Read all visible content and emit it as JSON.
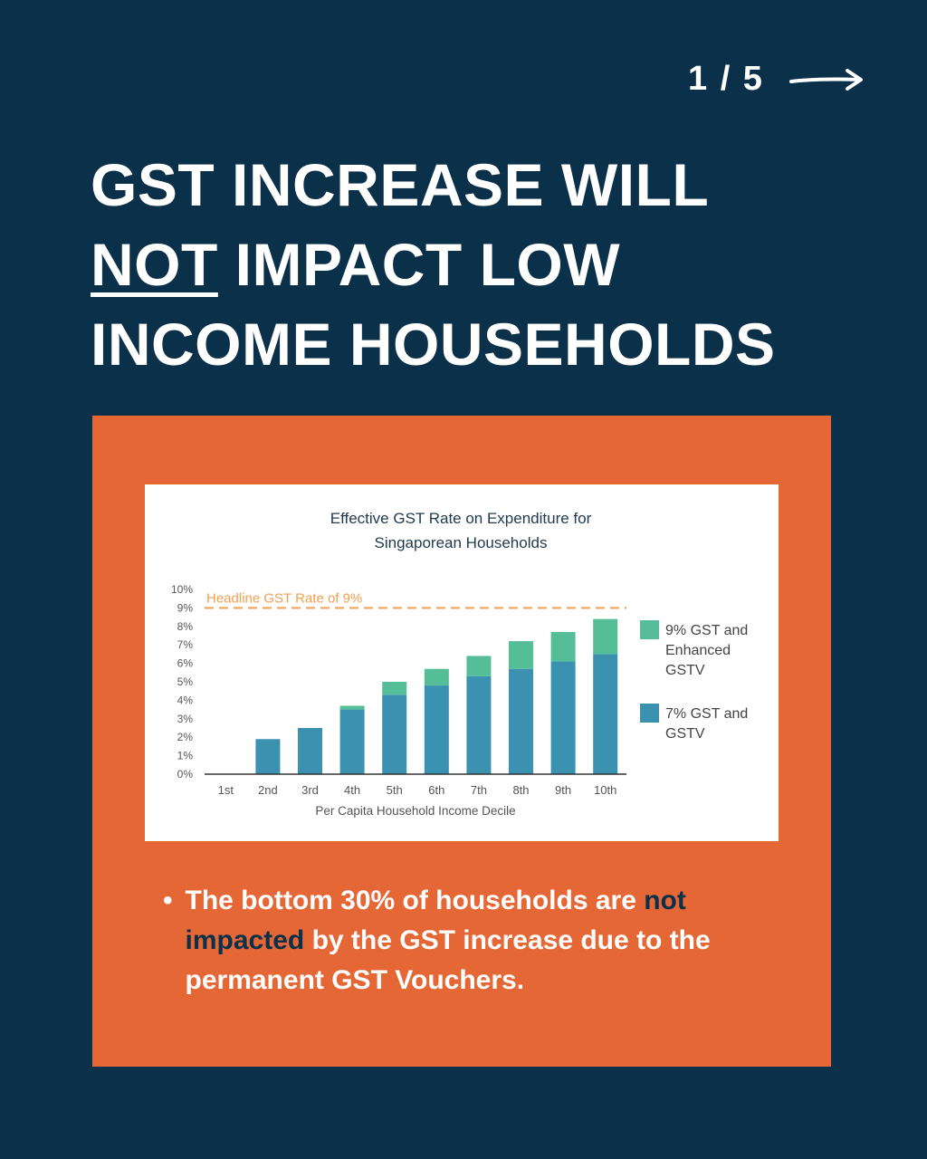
{
  "pager": {
    "text": "1 / 5",
    "icon": "arrow-right-icon"
  },
  "headline": {
    "line1": "GST INCREASE WILL",
    "line2_underlined": "NOT",
    "line2_rest": " IMPACT LOW",
    "line3": "INCOME HOUSEHOLDS"
  },
  "bullet": {
    "part1": "The bottom 30% of households are ",
    "highlight": "not impacted",
    "part2": " by the GST increase due to the permanent GST Vouchers."
  },
  "colors": {
    "background": "#0b3049",
    "panel": "#e66736",
    "series_7pct": "#3a91b0",
    "series_9pct": "#55bd98",
    "reference_line": "#f0a050"
  },
  "chart_data": {
    "type": "bar",
    "stacked": true,
    "title_line1": "Effective GST Rate on Expenditure for",
    "title_line2": "Singaporean Households",
    "xlabel": "Per Capita Household Income Decile",
    "ylabel": "",
    "ylim": [
      0,
      10
    ],
    "yticks": [
      "0%",
      "1%",
      "2%",
      "3%",
      "4%",
      "5%",
      "6%",
      "7%",
      "8%",
      "9%",
      "10%"
    ],
    "categories": [
      "1st",
      "2nd",
      "3rd",
      "4th",
      "5th",
      "6th",
      "7th",
      "8th",
      "9th",
      "10th"
    ],
    "series": [
      {
        "name": "7% GST and GSTV",
        "legend_lines": [
          "7% GST and",
          "GSTV"
        ],
        "color": "#3a91b0",
        "values": [
          0,
          1.9,
          2.5,
          3.5,
          4.3,
          4.8,
          5.3,
          5.7,
          6.1,
          6.5
        ]
      },
      {
        "name": "9% GST and Enhanced GSTV",
        "legend_lines": [
          "9% GST and",
          "Enhanced",
          "GSTV"
        ],
        "color": "#55bd98",
        "values": [
          0,
          0,
          0,
          0.2,
          0.7,
          0.9,
          1.1,
          1.5,
          1.6,
          1.9
        ]
      }
    ],
    "reference_line": {
      "value": 9,
      "label": "Headline GST Rate of 9%"
    },
    "legend_position": "right"
  }
}
